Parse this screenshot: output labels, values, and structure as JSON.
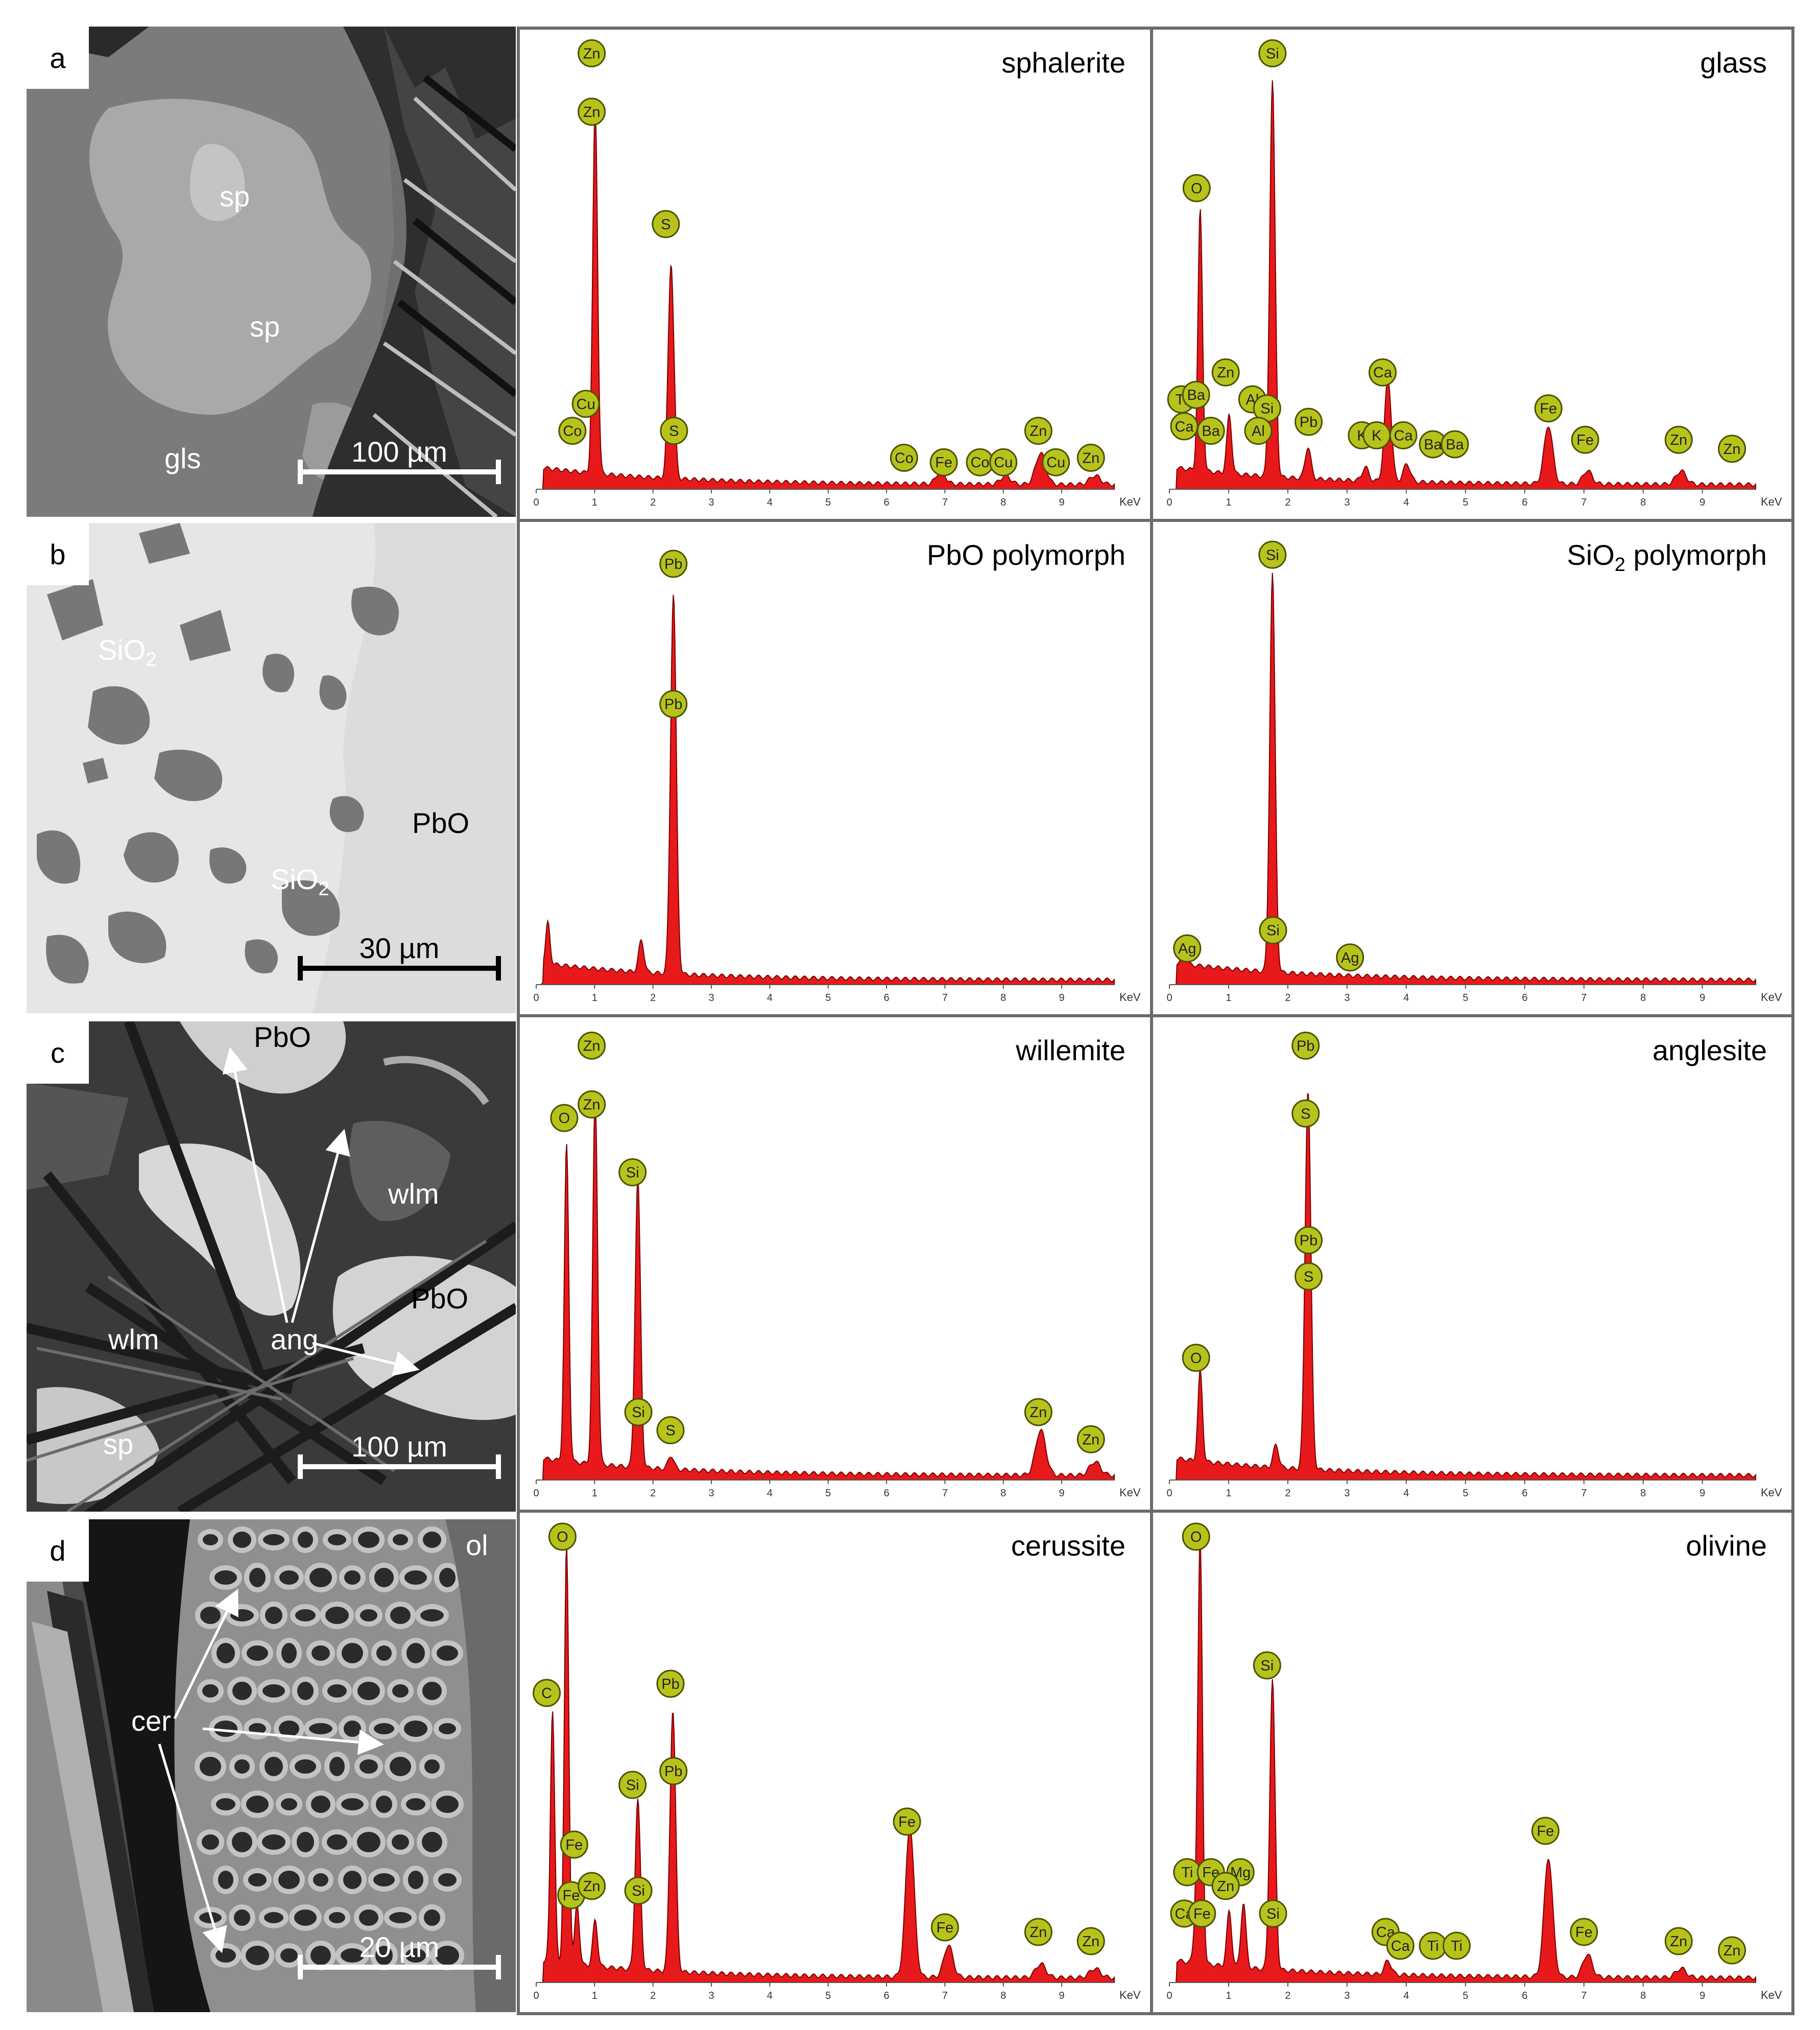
{
  "panels": [
    {
      "letter": "a",
      "image_labels": [
        "sp",
        "sp",
        "gls"
      ],
      "scale_bar": "100 µm",
      "spectra": [
        {
          "mineral": "sphalerite",
          "peaks": [
            {
              "el": "Zn",
              "kev": 1.01,
              "h": 0.82
            },
            {
              "el": "S",
              "kev": 2.31,
              "h": 0.48
            },
            {
              "el": "Co",
              "kev": 6.93,
              "h": 0.03
            },
            {
              "el": "Cu",
              "kev": 8.04,
              "h": 0.02
            },
            {
              "el": "Zn",
              "kev": 8.64,
              "h": 0.07
            },
            {
              "el": "Zn",
              "kev": 9.57,
              "h": 0.02
            }
          ],
          "markers": [
            {
              "el": "Zn",
              "kev": 0.95,
              "h": 0.97
            },
            {
              "el": "Zn",
              "kev": 0.95,
              "h": 0.84
            },
            {
              "el": "S",
              "kev": 2.22,
              "h": 0.59
            },
            {
              "el": "Cu",
              "kev": 0.85,
              "h": 0.19
            },
            {
              "el": "Co",
              "kev": 0.62,
              "h": 0.13
            },
            {
              "el": "S",
              "kev": 2.36,
              "h": 0.13
            },
            {
              "el": "Co",
              "kev": 6.3,
              "h": 0.07
            },
            {
              "el": "Fe",
              "kev": 6.98,
              "h": 0.06
            },
            {
              "el": "Co",
              "kev": 7.6,
              "h": 0.06
            },
            {
              "el": "Cu",
              "kev": 8.0,
              "h": 0.06
            },
            {
              "el": "Zn",
              "kev": 8.6,
              "h": 0.13
            },
            {
              "el": "Cu",
              "kev": 8.9,
              "h": 0.06
            },
            {
              "el": "Zn",
              "kev": 9.5,
              "h": 0.07
            }
          ]
        },
        {
          "mineral": "glass",
          "peaks": [
            {
              "el": "O",
              "kev": 0.52,
              "h": 0.58
            },
            {
              "el": "Zn",
              "kev": 1.01,
              "h": 0.13
            },
            {
              "el": "Si",
              "kev": 1.74,
              "h": 0.88
            },
            {
              "el": "Pb",
              "kev": 2.34,
              "h": 0.07
            },
            {
              "el": "K",
              "kev": 3.31,
              "h": 0.03
            },
            {
              "el": "Ca",
              "kev": 3.69,
              "h": 0.23
            },
            {
              "el": "Ca",
              "kev": 4.01,
              "h": 0.04
            },
            {
              "el": "Fe",
              "kev": 6.4,
              "h": 0.13
            },
            {
              "el": "Fe",
              "kev": 7.06,
              "h": 0.03
            },
            {
              "el": "Zn",
              "kev": 8.64,
              "h": 0.03
            }
          ],
          "markers": [
            {
              "el": "Si",
              "kev": 1.74,
              "h": 0.97
            },
            {
              "el": "O",
              "kev": 0.46,
              "h": 0.67
            },
            {
              "el": "Zn",
              "kev": 0.95,
              "h": 0.26
            },
            {
              "el": "Ca",
              "kev": 3.6,
              "h": 0.26
            },
            {
              "el": "Ti",
              "kev": 0.2,
              "h": 0.2
            },
            {
              "el": "Ba",
              "kev": 0.45,
              "h": 0.21
            },
            {
              "el": "Al",
              "kev": 1.4,
              "h": 0.2
            },
            {
              "el": "Si",
              "kev": 1.65,
              "h": 0.18
            },
            {
              "el": "Ca",
              "kev": 0.25,
              "h": 0.14
            },
            {
              "el": "Ba",
              "kev": 0.7,
              "h": 0.13
            },
            {
              "el": "Al",
              "kev": 1.5,
              "h": 0.13
            },
            {
              "el": "Pb",
              "kev": 2.35,
              "h": 0.15
            },
            {
              "el": "K",
              "kev": 3.25,
              "h": 0.12
            },
            {
              "el": "K",
              "kev": 3.5,
              "h": 0.12
            },
            {
              "el": "Ca",
              "kev": 3.95,
              "h": 0.12
            },
            {
              "el": "Ba",
              "kev": 4.45,
              "h": 0.1
            },
            {
              "el": "Ba",
              "kev": 4.82,
              "h": 0.1
            },
            {
              "el": "Fe",
              "kev": 6.4,
              "h": 0.18
            },
            {
              "el": "Fe",
              "kev": 7.02,
              "h": 0.11
            },
            {
              "el": "Zn",
              "kev": 8.6,
              "h": 0.11
            },
            {
              "el": "Zn",
              "kev": 9.5,
              "h": 0.09
            }
          ]
        }
      ]
    },
    {
      "letter": "b",
      "image_labels": [
        "SiO2",
        "PbO",
        "SiO2"
      ],
      "scale_bar": "30 µm",
      "spectra": [
        {
          "mineral": "PbO polymorph",
          "peaks": [
            {
              "el": "Pb",
              "kev": 2.35,
              "h": 0.84
            },
            {
              "el": "Pb",
              "kev": 1.8,
              "h": 0.07
            },
            {
              "el": "Pb",
              "kev": 0.2,
              "h": 0.09
            }
          ],
          "markers": [
            {
              "el": "Pb",
              "kev": 2.35,
              "h": 0.93
            },
            {
              "el": "Pb",
              "kev": 2.35,
              "h": 0.62
            }
          ]
        },
        {
          "mineral": "SiO2 polymorph",
          "peaks": [
            {
              "el": "Si",
              "kev": 1.74,
              "h": 0.88
            },
            {
              "el": "Ag",
              "kev": 0.25,
              "h": 0.03
            }
          ],
          "markers": [
            {
              "el": "Si",
              "kev": 1.74,
              "h": 0.95
            },
            {
              "el": "Ag",
              "kev": 0.3,
              "h": 0.08
            },
            {
              "el": "Si",
              "kev": 1.75,
              "h": 0.12
            },
            {
              "el": "Ag",
              "kev": 3.05,
              "h": 0.06
            }
          ]
        }
      ]
    },
    {
      "letter": "c",
      "image_labels": [
        "PbO",
        "wlm",
        "PbO",
        "wlm",
        "ang",
        "sp"
      ],
      "scale_bar": "100 µm",
      "spectra": [
        {
          "mineral": "willemite",
          "peaks": [
            {
              "el": "O",
              "kev": 0.52,
              "h": 0.7
            },
            {
              "el": "Zn",
              "kev": 1.01,
              "h": 0.82
            },
            {
              "el": "Si",
              "kev": 1.74,
              "h": 0.64
            },
            {
              "el": "S",
              "kev": 2.31,
              "h": 0.03
            },
            {
              "el": "Zn",
              "kev": 8.64,
              "h": 0.1
            },
            {
              "el": "Zn",
              "kev": 9.57,
              "h": 0.03
            }
          ],
          "markers": [
            {
              "el": "Zn",
              "kev": 0.95,
              "h": 0.96
            },
            {
              "el": "Zn",
              "kev": 0.95,
              "h": 0.83
            },
            {
              "el": "O",
              "kev": 0.48,
              "h": 0.8
            },
            {
              "el": "Si",
              "kev": 1.65,
              "h": 0.68
            },
            {
              "el": "Si",
              "kev": 1.75,
              "h": 0.15
            },
            {
              "el": "S",
              "kev": 2.3,
              "h": 0.11
            },
            {
              "el": "Zn",
              "kev": 8.6,
              "h": 0.15
            },
            {
              "el": "Zn",
              "kev": 9.5,
              "h": 0.09
            }
          ]
        },
        {
          "mineral": "anglesite",
          "peaks": [
            {
              "el": "O",
              "kev": 0.52,
              "h": 0.2
            },
            {
              "el": "Pb",
              "kev": 2.34,
              "h": 0.84
            },
            {
              "el": "Pb",
              "kev": 1.8,
              "h": 0.05
            }
          ],
          "markers": [
            {
              "el": "Pb",
              "kev": 2.3,
              "h": 0.96
            },
            {
              "el": "S",
              "kev": 2.3,
              "h": 0.81
            },
            {
              "el": "Pb",
              "kev": 2.35,
              "h": 0.53
            },
            {
              "el": "S",
              "kev": 2.35,
              "h": 0.45
            },
            {
              "el": "O",
              "kev": 0.45,
              "h": 0.27
            }
          ]
        }
      ]
    },
    {
      "letter": "d",
      "image_labels": [
        "ol",
        "cer"
      ],
      "scale_bar": "20 µm",
      "spectra": [
        {
          "mineral": "cerussite",
          "peaks": [
            {
              "el": "C",
              "kev": 0.28,
              "h": 0.55
            },
            {
              "el": "O",
              "kev": 0.52,
              "h": 0.91
            },
            {
              "el": "Fe",
              "kev": 0.7,
              "h": 0.13
            },
            {
              "el": "Zn",
              "kev": 1.01,
              "h": 0.1
            },
            {
              "el": "Si",
              "kev": 1.74,
              "h": 0.37
            },
            {
              "el": "Pb",
              "kev": 2.34,
              "h": 0.57
            },
            {
              "el": "Fe",
              "kev": 6.4,
              "h": 0.33
            },
            {
              "el": "Fe",
              "kev": 7.06,
              "h": 0.07
            },
            {
              "el": "Zn",
              "kev": 8.64,
              "h": 0.03
            },
            {
              "el": "Zn",
              "kev": 9.57,
              "h": 0.02
            }
          ],
          "markers": [
            {
              "el": "O",
              "kev": 0.45,
              "h": 0.97
            },
            {
              "el": "C",
              "kev": 0.18,
              "h": 0.63
            },
            {
              "el": "Pb",
              "kev": 2.3,
              "h": 0.65
            },
            {
              "el": "Pb",
              "kev": 2.35,
              "h": 0.46
            },
            {
              "el": "Si",
              "kev": 1.65,
              "h": 0.43
            },
            {
              "el": "Fe",
              "kev": 0.65,
              "h": 0.3
            },
            {
              "el": "Fe",
              "kev": 0.6,
              "h": 0.19
            },
            {
              "el": "Zn",
              "kev": 0.95,
              "h": 0.21
            },
            {
              "el": "Si",
              "kev": 1.75,
              "h": 0.2
            },
            {
              "el": "Fe",
              "kev": 6.35,
              "h": 0.35
            },
            {
              "el": "Fe",
              "kev": 7.0,
              "h": 0.12
            },
            {
              "el": "Zn",
              "kev": 8.6,
              "h": 0.11
            },
            {
              "el": "Zn",
              "kev": 9.5,
              "h": 0.09
            }
          ]
        },
        {
          "mineral": "olivine",
          "peaks": [
            {
              "el": "O",
              "kev": 0.52,
              "h": 0.91
            },
            {
              "el": "Ti",
              "kev": 0.45,
              "h": 0.1
            },
            {
              "el": "Zn",
              "kev": 1.01,
              "h": 0.12
            },
            {
              "el": "Mg",
              "kev": 1.25,
              "h": 0.14
            },
            {
              "el": "Si",
              "kev": 1.74,
              "h": 0.63
            },
            {
              "el": "Ca",
              "kev": 3.69,
              "h": 0.03
            },
            {
              "el": "Fe",
              "kev": 6.4,
              "h": 0.26
            },
            {
              "el": "Fe",
              "kev": 7.06,
              "h": 0.05
            },
            {
              "el": "Zn",
              "kev": 8.64,
              "h": 0.02
            }
          ],
          "markers": [
            {
              "el": "O",
              "kev": 0.45,
              "h": 0.97
            },
            {
              "el": "Si",
              "kev": 1.65,
              "h": 0.69
            },
            {
              "el": "Ti",
              "kev": 0.3,
              "h": 0.24
            },
            {
              "el": "Fe",
              "kev": 0.7,
              "h": 0.24
            },
            {
              "el": "Mg",
              "kev": 1.2,
              "h": 0.24
            },
            {
              "el": "Zn",
              "kev": 0.95,
              "h": 0.21
            },
            {
              "el": "Ca",
              "kev": 0.25,
              "h": 0.15
            },
            {
              "el": "Fe",
              "kev": 0.55,
              "h": 0.15
            },
            {
              "el": "Si",
              "kev": 1.75,
              "h": 0.15
            },
            {
              "el": "Ca",
              "kev": 3.65,
              "h": 0.11
            },
            {
              "el": "Ca",
              "kev": 3.9,
              "h": 0.08
            },
            {
              "el": "Ti",
              "kev": 4.45,
              "h": 0.08
            },
            {
              "el": "Ti",
              "kev": 4.85,
              "h": 0.08
            },
            {
              "el": "Fe",
              "kev": 6.35,
              "h": 0.33
            },
            {
              "el": "Fe",
              "kev": 7.0,
              "h": 0.11
            },
            {
              "el": "Zn",
              "kev": 8.6,
              "h": 0.09
            },
            {
              "el": "Zn",
              "kev": 9.5,
              "h": 0.07
            }
          ]
        }
      ]
    }
  ],
  "axis": {
    "ticks": [
      "0",
      "1",
      "2",
      "3",
      "4",
      "5",
      "6",
      "7",
      "8",
      "9"
    ],
    "unit": "KeV",
    "xlim": [
      0,
      9.9
    ]
  },
  "colors": {
    "spectrum_fill": "#e8191a",
    "spectrum_line": "#7a0000",
    "marker_fill": "#b7c31b",
    "marker_stroke": "#4a5200",
    "frame": "#6b6b6b"
  }
}
